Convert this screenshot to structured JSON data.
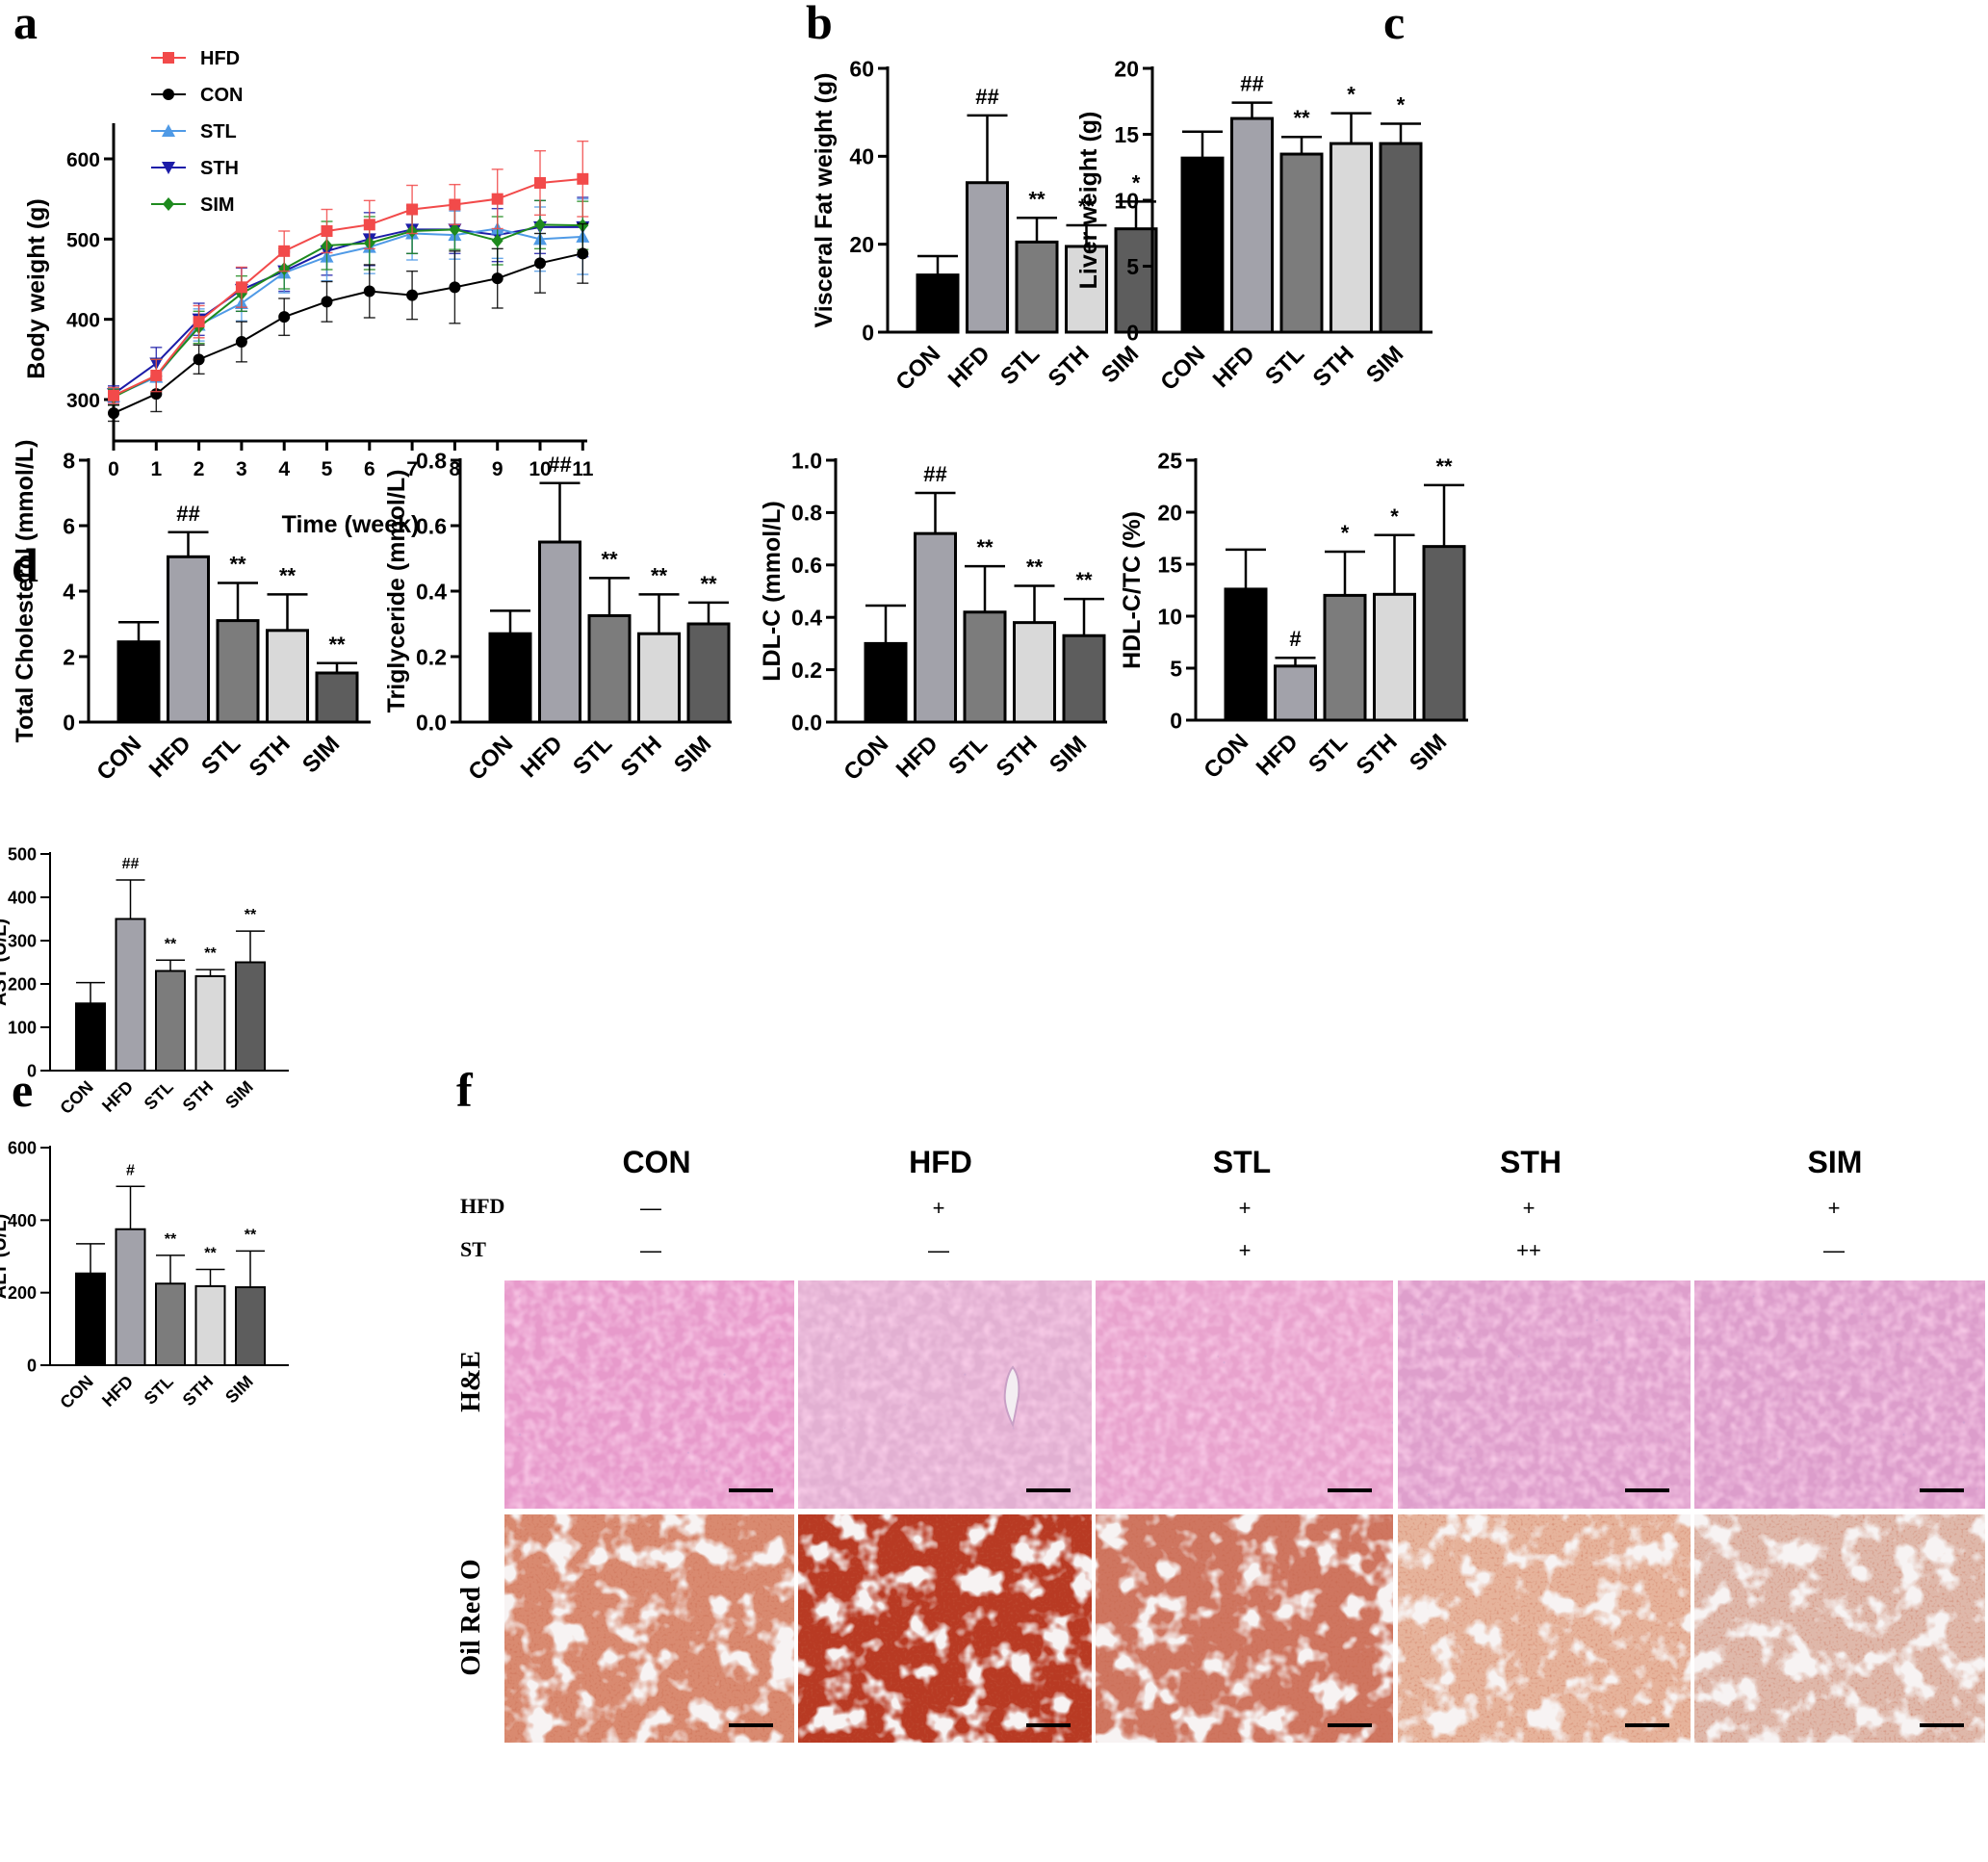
{
  "panel_labels": {
    "a": "a",
    "b": "b",
    "c": "c",
    "d": "d",
    "e": "e",
    "f": "f"
  },
  "colors": {
    "CON": "#000000",
    "HFD": "#a2a2aa",
    "STL": "#7c7c7c",
    "STH": "#d9d9d9",
    "SIM": "#5d5d5d"
  },
  "chart_data": [
    {
      "id": "a",
      "type": "line",
      "xlabel": "Time (week)",
      "ylabel": "Body weight (g)",
      "x": [
        0,
        1,
        2,
        3,
        4,
        5,
        6,
        7,
        8,
        9,
        10,
        11
      ],
      "xticks": [
        "0",
        "1",
        "2",
        "3",
        "4",
        "5",
        "6",
        "7",
        "8",
        "9",
        "10",
        "11"
      ],
      "yticks": [
        "300",
        "400",
        "500",
        "600"
      ],
      "ylim": [
        290,
        645
      ],
      "series": [
        {
          "name": "HFD",
          "color": "#f24a4a",
          "marker": "square",
          "values": [
            305,
            330,
            397,
            440,
            485,
            510,
            518,
            537,
            543,
            550,
            570,
            575
          ],
          "errors": [
            10,
            20,
            20,
            25,
            25,
            27,
            30,
            30,
            25,
            37,
            40,
            47
          ]
        },
        {
          "name": "CON",
          "color": "#000000",
          "marker": "circle",
          "values": [
            283,
            307,
            350,
            372,
            403,
            422,
            435,
            430,
            440,
            451,
            470,
            482
          ],
          "errors": [
            10,
            22,
            18,
            25,
            23,
            25,
            33,
            30,
            45,
            37,
            37,
            37
          ]
        },
        {
          "name": "STL",
          "color": "#4f9ae6",
          "marker": "triangle-up",
          "values": [
            304,
            328,
            393,
            420,
            458,
            478,
            490,
            507,
            505,
            513,
            500,
            503
          ],
          "errors": [
            10,
            22,
            20,
            22,
            25,
            30,
            33,
            33,
            30,
            37,
            40,
            47
          ]
        },
        {
          "name": "STH",
          "color": "#1c1ca8",
          "marker": "triangle-down",
          "values": [
            307,
            345,
            400,
            437,
            460,
            485,
            500,
            512,
            512,
            505,
            515,
            515
          ],
          "errors": [
            10,
            20,
            20,
            27,
            25,
            30,
            33,
            30,
            30,
            33,
            33,
            37
          ]
        },
        {
          "name": "SIM",
          "color": "#1e8a1e",
          "marker": "diamond",
          "values": [
            303,
            330,
            390,
            432,
            463,
            492,
            495,
            510,
            512,
            498,
            518,
            517
          ],
          "errors": [
            10,
            20,
            20,
            22,
            25,
            30,
            33,
            28,
            25,
            30,
            30,
            30
          ]
        }
      ]
    },
    {
      "id": "b",
      "type": "bar",
      "ylabel": "Visceral Fat weight (g)",
      "categories": [
        "CON",
        "HFD",
        "STL",
        "STH",
        "SIM"
      ],
      "values": [
        13,
        34,
        20.5,
        19.5,
        23.5
      ],
      "errors": [
        4.3,
        15.3,
        5.5,
        4.8,
        6.2
      ],
      "annotations": [
        "",
        "##",
        "**",
        "**",
        "*"
      ],
      "yticks": [
        "0",
        "20",
        "40",
        "60"
      ],
      "ylim": [
        0,
        60
      ]
    },
    {
      "id": "c",
      "type": "bar",
      "ylabel": "Liver weight (g)",
      "categories": [
        "CON",
        "HFD",
        "STL",
        "STH",
        "SIM"
      ],
      "values": [
        13.2,
        16.2,
        13.5,
        14.3,
        14.3
      ],
      "errors": [
        2.0,
        1.2,
        1.3,
        2.3,
        1.5
      ],
      "annotations": [
        "",
        "##",
        "**",
        "*",
        "*"
      ],
      "yticks": [
        "0",
        "5",
        "10",
        "15",
        "20"
      ],
      "ylim": [
        0,
        20
      ]
    },
    {
      "id": "d1",
      "type": "bar",
      "ylabel": "Total Cholesterol (mmol/L)",
      "categories": [
        "CON",
        "HFD",
        "STL",
        "STH",
        "SIM"
      ],
      "values": [
        2.45,
        5.05,
        3.1,
        2.8,
        1.5
      ],
      "errors": [
        0.6,
        0.75,
        1.15,
        1.1,
        0.3
      ],
      "annotations": [
        "",
        "##",
        "**",
        "**",
        "**"
      ],
      "yticks": [
        "0",
        "2",
        "4",
        "6",
        "8"
      ],
      "ylim": [
        0,
        8
      ]
    },
    {
      "id": "d2",
      "type": "bar",
      "ylabel": "Triglyceride (mmol/L)",
      "categories": [
        "CON",
        "HFD",
        "STL",
        "STH",
        "SIM"
      ],
      "values": [
        0.27,
        0.55,
        0.325,
        0.27,
        0.3
      ],
      "errors": [
        0.07,
        0.18,
        0.115,
        0.12,
        0.065
      ],
      "annotations": [
        "",
        "##",
        "**",
        "**",
        "**"
      ],
      "yticks": [
        "0.0",
        "0.2",
        "0.4",
        "0.6",
        "0.8"
      ],
      "ylim": [
        0,
        0.8
      ]
    },
    {
      "id": "d3",
      "type": "bar",
      "ylabel": "LDL-C (mmol/L)",
      "categories": [
        "CON",
        "HFD",
        "STL",
        "STH",
        "SIM"
      ],
      "values": [
        0.3,
        0.72,
        0.42,
        0.38,
        0.33
      ],
      "errors": [
        0.145,
        0.155,
        0.175,
        0.14,
        0.14
      ],
      "annotations": [
        "",
        "##",
        "**",
        "**",
        "**"
      ],
      "yticks": [
        "0.0",
        "0.2",
        "0.4",
        "0.6",
        "0.8",
        "1.0"
      ],
      "ylim": [
        0,
        1.0
      ]
    },
    {
      "id": "d4",
      "type": "bar",
      "ylabel": "HDL-C/TC (%)",
      "categories": [
        "CON",
        "HFD",
        "STL",
        "STH",
        "SIM"
      ],
      "values": [
        12.6,
        5.2,
        12.0,
        12.1,
        16.7
      ],
      "errors": [
        3.8,
        0.8,
        4.2,
        5.7,
        5.9
      ],
      "annotations": [
        "",
        "#",
        "*",
        "*",
        "**"
      ],
      "yticks": [
        "0",
        "5",
        "10",
        "15",
        "20",
        "25"
      ],
      "ylim": [
        0,
        25
      ]
    },
    {
      "id": "e1",
      "type": "bar",
      "ylabel": "AST (U/L)",
      "categories": [
        "CON",
        "HFD",
        "STL",
        "STH",
        "SIM"
      ],
      "values": [
        155,
        350,
        230,
        218,
        250
      ],
      "errors": [
        48,
        90,
        25,
        15,
        72
      ],
      "annotations": [
        "",
        "##",
        "**",
        "**",
        "**"
      ],
      "yticks": [
        "0",
        "100",
        "200",
        "300",
        "400",
        "500"
      ],
      "ylim": [
        0,
        500
      ]
    },
    {
      "id": "e2",
      "type": "bar",
      "ylabel": "ALT (U/L)",
      "categories": [
        "CON",
        "HFD",
        "STL",
        "STH",
        "SIM"
      ],
      "values": [
        253,
        375,
        225,
        218,
        215
      ],
      "errors": [
        82,
        118,
        78,
        46,
        100
      ],
      "annotations": [
        "",
        "#",
        "**",
        "**",
        "**"
      ],
      "yticks": [
        "0",
        "200",
        "400",
        "600"
      ],
      "ylim": [
        0,
        600
      ]
    }
  ],
  "histology": {
    "groups": [
      "CON",
      "HFD",
      "STL",
      "STH",
      "SIM"
    ],
    "row_labels": {
      "hfd": "HFD",
      "st": "ST"
    },
    "hfd_marks": [
      "—",
      "+",
      "+",
      "+",
      "+"
    ],
    "st_marks": [
      "—",
      "—",
      "+",
      "++",
      "—"
    ],
    "stains": [
      "H&E",
      "Oil Red O"
    ]
  }
}
